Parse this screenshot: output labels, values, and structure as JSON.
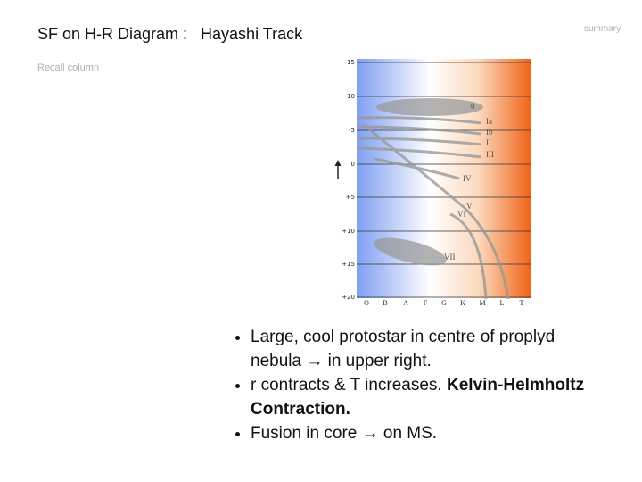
{
  "header": {
    "title": "SF on H-R Diagram :   Hayashi Track",
    "recall": "Recall column",
    "summary": "summary"
  },
  "diagram": {
    "magnitudes": [
      "-15",
      "-10",
      "-5",
      "0",
      "+5",
      "+10",
      "+15",
      "+20"
    ],
    "spectral_classes": [
      "O",
      "B",
      "A",
      "F",
      "G",
      "K",
      "M",
      "L",
      "T"
    ],
    "luminosity_classes": [
      "0",
      "Ia",
      "Ib",
      "II",
      "III",
      "IV",
      "V",
      "VI",
      "VII"
    ]
  },
  "bullets": [
    {
      "text": "Large, cool  protostar in centre of proplyd  nebula → in upper right."
    },
    {
      "text": "r contracts & T increases. ",
      "bold": "Kelvin-Helmholtz Contraction."
    },
    {
      "text": "Fusion in core → on MS."
    }
  ]
}
